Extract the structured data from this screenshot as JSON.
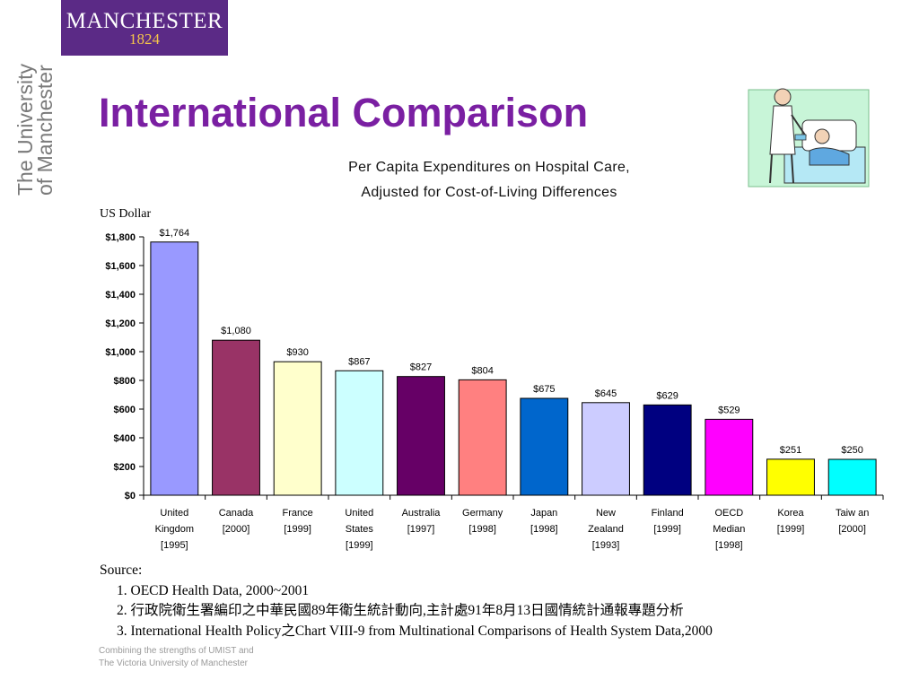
{
  "logo": {
    "name": "MANCHESTER",
    "year": "1824"
  },
  "sidebar": {
    "university_line1": "The University",
    "university_line2": "of Manchester"
  },
  "slide": {
    "title": "International Comparison"
  },
  "clipart": {
    "icon": "nurse-patient-illustration"
  },
  "chart_data": {
    "type": "bar",
    "title_line1": "Per Capita Expenditures on Hospital Care,",
    "title_line2": "Adjusted for Cost-of-Living Differences",
    "ylabel": "US Dollar",
    "ylim": [
      0,
      1800
    ],
    "yticks": [
      0,
      200,
      400,
      600,
      800,
      1000,
      1200,
      1400,
      1600,
      1800
    ],
    "ytick_labels": [
      "$0",
      "$200",
      "$400",
      "$600",
      "$800",
      "$1,000",
      "$1,200",
      "$1,400",
      "$1,600",
      "$1,800"
    ],
    "grid": false,
    "categories": [
      [
        "United",
        "Kingdom",
        "[1995]"
      ],
      [
        "Canada",
        "[2000]"
      ],
      [
        "France",
        "[1999]"
      ],
      [
        "United",
        "States",
        "[1999]"
      ],
      [
        "Australia",
        "[1997]"
      ],
      [
        "Germany",
        "[1998]"
      ],
      [
        "Japan",
        "[1998]"
      ],
      [
        "New",
        "Zealand",
        "[1993]"
      ],
      [
        "Finland",
        "[1999]"
      ],
      [
        "OECD",
        "Median",
        "[1998]"
      ],
      [
        "Korea",
        "[1999]"
      ],
      [
        "Taiw an",
        "[2000]"
      ]
    ],
    "values": [
      1764,
      1080,
      930,
      867,
      827,
      804,
      675,
      645,
      629,
      529,
      251,
      250
    ],
    "value_labels": [
      "$1,764",
      "$1,080",
      "$930",
      "$867",
      "$827",
      "$804",
      "$675",
      "$645",
      "$629",
      "$529",
      "$251",
      "$250"
    ],
    "colors": [
      "#9999ff",
      "#993366",
      "#ffffcc",
      "#ccffff",
      "#660066",
      "#ff8080",
      "#0066cc",
      "#ccccff",
      "#000080",
      "#ff00ff",
      "#ffff00",
      "#00ffff"
    ]
  },
  "source": {
    "heading": "Source:",
    "lines": [
      "1. OECD Health Data, 2000~2001",
      "2. 行政院衛生署編印之中華民國89年衛生統計動向,主計處91年8月13日國情統計通報專題分析",
      "3. International Health Policy之Chart VIII-9 from Multinational Comparisons of Health System Data,2000"
    ]
  },
  "footer": {
    "line1": "Combining the strengths of UMIST and",
    "line2": "The Victoria University of Manchester"
  }
}
